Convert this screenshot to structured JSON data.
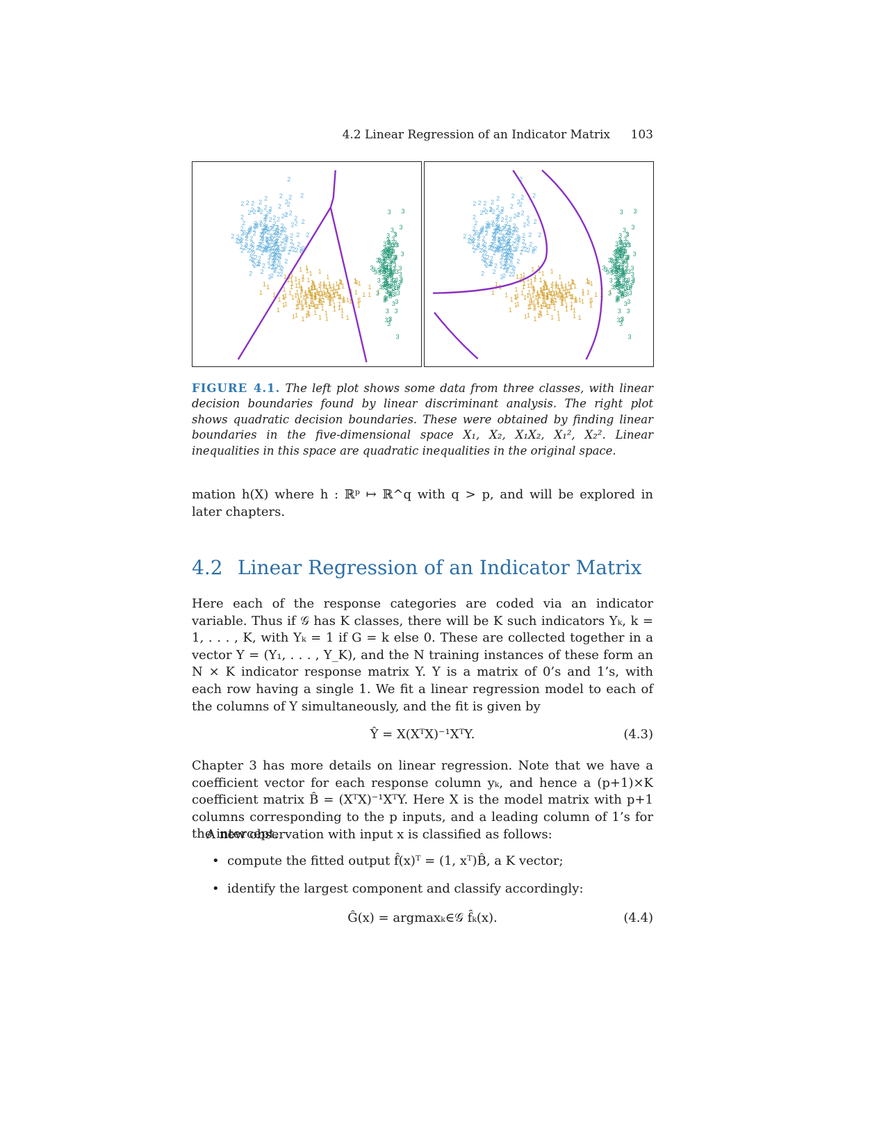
{
  "header": {
    "title": "4.2 Linear Regression of an Indicator Matrix",
    "page_number": "103"
  },
  "figure": {
    "label": "FIGURE 4.1.",
    "caption": "The left plot shows some data from three classes, with linear decision boundaries found by linear discriminant analysis. The right plot shows quadratic decision boundaries. These were obtained by finding linear boundaries in the five-dimensional space X₁, X₂, X₁X₂, X₁², X₂². Linear inequalities in this space are quadratic inequalities in the original space.",
    "colors": {
      "class1": "#d6a435",
      "class2": "#6ab3dd",
      "class3": "#2a9a7a",
      "boundary": "#8a2fc2"
    },
    "class_symbols": [
      "1",
      "2",
      "3"
    ]
  },
  "body": {
    "intro_text": "mation h(X) where h : ℝᵖ ↦ ℝ^q with q > p, and will be explored in later chapters.",
    "section": {
      "number": "4.2",
      "title": "Linear Regression of an Indicator Matrix"
    },
    "para1": "Here each of the response categories are coded via an indicator variable. Thus if 𝒢 has K classes, there will be K such indicators Yₖ, k = 1, . . . , K, with Yₖ = 1 if G = k else 0. These are collected together in a vector Y = (Y₁, . . . , Y_K), and the N training instances of these form an N × K indicator response matrix Y. Y is a matrix of 0’s and 1’s, with each row having a single 1. We fit a linear regression model to each of the columns of Y simultaneously, and the fit is given by",
    "eq1": {
      "body": "Ŷ = X(XᵀX)⁻¹XᵀY.",
      "number": "(4.3)"
    },
    "para2": "Chapter 3 has more details on linear regression. Note that we have a coefficient vector for each response column yₖ, and hence a (p+1)×K coefficient matrix B̂ = (XᵀX)⁻¹XᵀY. Here X is the model matrix with p+1 columns corresponding to the p inputs, and a leading column of 1’s for the intercept.",
    "para3": "A new observation with input x is classified as follows:",
    "bullets": [
      "compute the fitted output f̂(x)ᵀ = (1, xᵀ)B̂, a K vector;",
      "identify the largest component and classify accordingly:"
    ],
    "eq2": {
      "body": "Ĝ(x) = argmaxₖ∈𝒢 f̂ₖ(x).",
      "number": "(4.4)"
    }
  }
}
